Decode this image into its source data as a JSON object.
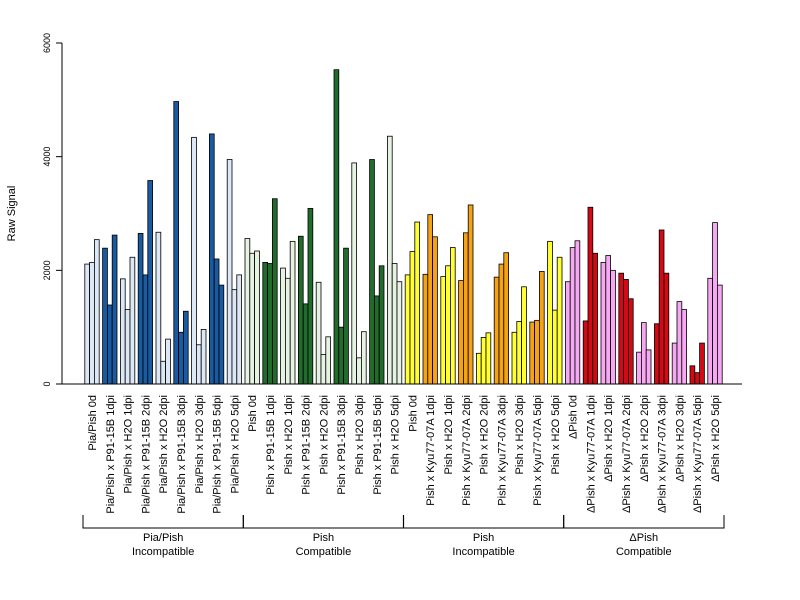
{
  "chart_data": {
    "type": "bar",
    "ylabel": "Raw Signal",
    "ylim": [
      0,
      6000
    ],
    "yticks": [
      0,
      2000,
      4000,
      6000
    ],
    "grid": false,
    "categories": [
      "Pia/Pish 0d",
      "Pia/Pish x P91-15B 1dpi",
      "Pia/Pish x H2O 1dpi",
      "Pia/Pish x P91-15B 2dpi",
      "Pia/Pish x H2O 2dpi",
      "Pia/Pish x P91-15B 3dpi",
      "Pia/Pish x H2O 3dpi",
      "Pia/Pish x P91-15B 5dpi",
      "Pia/Pish x H2O 5dpi",
      "Pish 0d",
      "Pish x P91-15B 1dpi",
      "Pish x H2O 1dpi",
      "Pish x P91-15B 2dpi",
      "Pish x H2O 2dpi",
      "Pish x P91-15B 3dpi",
      "Pish x H2O 3dpi",
      "Pish x P91-15B 5dpi",
      "Pish x H2O 5dpi",
      "Pish 0d",
      "Pish x Kyu77-07A 1dpi",
      "Pish x H2O 1dpi",
      "Pish x Kyu77-07A 2dpi",
      "Pish x H2O 2dpi",
      "Pish x Kyu77-07A 3dpi",
      "Pish x H2O 3dpi",
      "Pish x Kyu77-07A 5dpi",
      "Pish x H2O 5dpi",
      "ΔPish 0d",
      "ΔPish x Kyu77-07A 1dpi",
      "ΔPish x H2O 1dpi",
      "ΔPish x Kyu77-07A 2dpi",
      "ΔPish x H2O 2dpi",
      "ΔPish x Kyu77-07A 3dpi",
      "ΔPish x H2O 3dpi",
      "ΔPish x Kyu77-07A 5dpi",
      "ΔPish x H2O 5dpi"
    ],
    "values": [
      [
        2110,
        2140,
        2540
      ],
      [
        2390,
        1390,
        2620
      ],
      [
        1850,
        1310,
        2230
      ],
      [
        2650,
        1920,
        3580
      ],
      [
        2670,
        400,
        790
      ],
      [
        4970,
        910,
        1280
      ],
      [
        4340,
        690,
        960
      ],
      [
        4400,
        2200,
        1740
      ],
      [
        3950,
        1660,
        1920
      ],
      [
        2560,
        2300,
        2340
      ],
      [
        2140,
        2120,
        3260
      ],
      [
        2040,
        1860,
        2510
      ],
      [
        2600,
        1410,
        3090
      ],
      [
        1790,
        520,
        830
      ],
      [
        5530,
        1000,
        2390
      ],
      [
        3890,
        460,
        920
      ],
      [
        3950,
        1550,
        2080
      ],
      [
        4360,
        2120,
        1800
      ],
      [
        1920,
        2330,
        2850
      ],
      [
        1930,
        2980,
        2590
      ],
      [
        1890,
        2080,
        2400
      ],
      [
        1820,
        2660,
        3150
      ],
      [
        540,
        820,
        900
      ],
      [
        1880,
        2110,
        2310
      ],
      [
        910,
        1100,
        1710
      ],
      [
        1090,
        1120,
        1980
      ],
      [
        2510,
        1300,
        2230
      ],
      [
        1800,
        2400,
        2520
      ],
      [
        1110,
        3110,
        2300
      ],
      [
        2140,
        2260,
        2000
      ],
      [
        1950,
        1840,
        1500
      ],
      [
        560,
        1080,
        600
      ],
      [
        1060,
        2710,
        1950
      ],
      [
        720,
        1450,
        1310
      ],
      [
        320,
        200,
        720
      ],
      [
        1860,
        2840,
        1740
      ]
    ],
    "colors": [
      "#dde8f6",
      "#1a5aa0",
      "#dde8f6",
      "#1a5aa0",
      "#dde8f6",
      "#1a5aa0",
      "#dde8f6",
      "#1a5aa0",
      "#dde8f6",
      "#e6f2e2",
      "#216b2c",
      "#e6f2e2",
      "#216b2c",
      "#e6f2e2",
      "#216b2c",
      "#e6f2e2",
      "#216b2c",
      "#e6f2e2",
      "#ffff33",
      "#f5a314",
      "#ffff33",
      "#f5a314",
      "#ffff33",
      "#f5a314",
      "#ffff33",
      "#f5a314",
      "#ffff33",
      "#f7a8f2",
      "#d10a16",
      "#f7a8f2",
      "#d10a16",
      "#f7a8f2",
      "#d10a16",
      "#f7a8f2",
      "#d10a16",
      "#f7a8f2"
    ],
    "groups": [
      {
        "line1": "Pia/Pish",
        "line2": "Incompatible",
        "from": 0,
        "to": 8
      },
      {
        "line1": "Pish",
        "line2": "Compatible",
        "from": 9,
        "to": 17
      },
      {
        "line1": "Pish",
        "line2": "Incompatible",
        "from": 18,
        "to": 26
      },
      {
        "line1": "ΔPish",
        "line2": "Compatible",
        "from": 27,
        "to": 35
      }
    ]
  }
}
